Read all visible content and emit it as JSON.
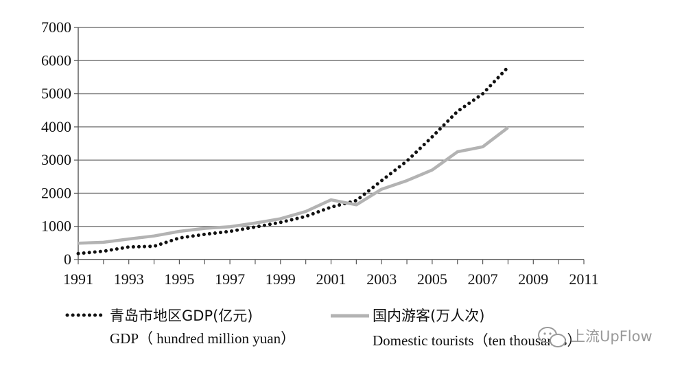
{
  "chart_data": {
    "type": "line",
    "x_range": [
      1991,
      2011
    ],
    "ylim": [
      0,
      7000
    ],
    "y_ticks": [
      "7000",
      "6000",
      "5000",
      "4000",
      "3000",
      "2000",
      "1000",
      "0"
    ],
    "x_ticks": [
      "1991",
      "1993",
      "1995",
      "1997",
      "1999",
      "2001",
      "2003",
      "2005",
      "2007",
      "2009",
      "2011"
    ],
    "grid": "horizontal",
    "legend_position": "bottom",
    "series": [
      {
        "name": "青岛市地区GDP(亿元)",
        "name_en": "GDP（ hundred million yuan）",
        "style": "dotted",
        "color": "#111111",
        "x": [
          1991,
          1992,
          1993,
          1994,
          1995,
          1996,
          1997,
          1998,
          1999,
          2000,
          2001,
          2002,
          2003,
          2004,
          2005,
          2006,
          2007,
          2008
        ],
        "values": [
          180,
          250,
          380,
          400,
          650,
          760,
          850,
          980,
          1120,
          1300,
          1580,
          1780,
          2380,
          2970,
          3700,
          4470,
          5000,
          5800
        ]
      },
      {
        "name": "国内游客(万人次)",
        "name_en": "Domestic tourists（ten thousands）",
        "style": "solid",
        "color": "#b3b3b3",
        "x": [
          1991,
          1992,
          1993,
          1994,
          1995,
          1996,
          1997,
          1998,
          1999,
          2000,
          2001,
          2002,
          2003,
          2004,
          2005,
          2006,
          2007,
          2008
        ],
        "values": [
          490,
          520,
          620,
          710,
          850,
          940,
          990,
          1100,
          1230,
          1450,
          1800,
          1650,
          2120,
          2380,
          2700,
          3250,
          3400,
          3980
        ]
      }
    ]
  },
  "watermark": {
    "text": "上流UpFlow",
    "icon": "wechat-bubble-icon"
  }
}
